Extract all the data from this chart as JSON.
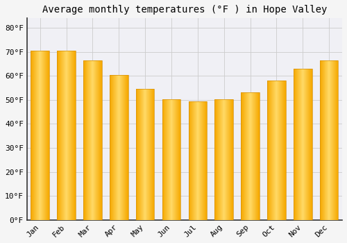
{
  "title": "Average monthly temperatures (°F ) in Hope Valley",
  "months": [
    "Jan",
    "Feb",
    "Mar",
    "Apr",
    "May",
    "Jun",
    "Jul",
    "Aug",
    "Sep",
    "Oct",
    "Nov",
    "Dec"
  ],
  "values": [
    70.5,
    70.5,
    66.5,
    60.5,
    54.5,
    50.2,
    49.5,
    50.3,
    53.0,
    58.0,
    63.0,
    66.5
  ],
  "bar_color_center": "#FFD966",
  "bar_color_edge": "#F5A800",
  "background_color": "#F5F5F5",
  "plot_bg_color": "#F0F0F5",
  "grid_color": "#CCCCCC",
  "ylim": [
    0,
    84
  ],
  "yticks": [
    0,
    10,
    20,
    30,
    40,
    50,
    60,
    70,
    80
  ],
  "ytick_labels": [
    "0°F",
    "10°F",
    "20°F",
    "30°F",
    "40°F",
    "50°F",
    "60°F",
    "70°F",
    "80°F"
  ],
  "title_fontsize": 10,
  "tick_fontsize": 8,
  "font_family": "monospace",
  "bar_width": 0.7
}
